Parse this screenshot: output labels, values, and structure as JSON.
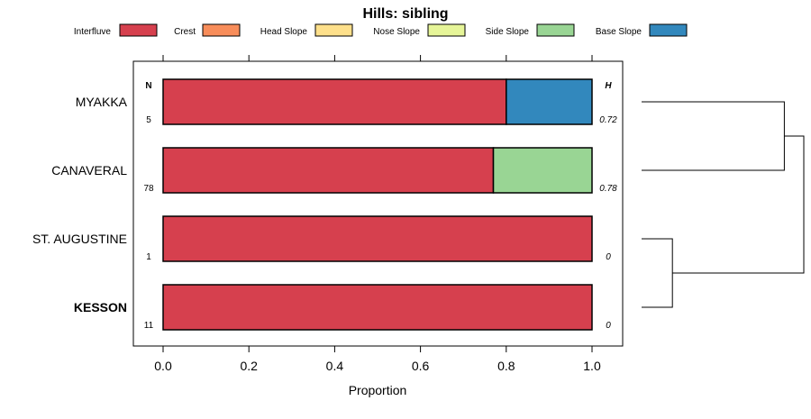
{
  "chart_data": {
    "type": "bar",
    "orientation": "horizontal",
    "stacked": true,
    "title": "Hills: sibling",
    "xlabel": "Proportion",
    "ylabel": "",
    "xlim": [
      0,
      1
    ],
    "x_ticks": [
      "0.0",
      "0.2",
      "0.4",
      "0.6",
      "0.8",
      "1.0"
    ],
    "legend_position": "top",
    "legend": [
      {
        "name": "Interfluve",
        "color": "#d6404e"
      },
      {
        "name": "Crest",
        "color": "#f88d5a"
      },
      {
        "name": "Head Slope",
        "color": "#fee08b"
      },
      {
        "name": "Nose Slope",
        "color": "#e6f598"
      },
      {
        "name": "Side Slope",
        "color": "#99d594"
      },
      {
        "name": "Base Slope",
        "color": "#3288bd"
      }
    ],
    "n_header": "N",
    "h_header": "H",
    "categories": [
      "MYAKKA",
      "CANAVERAL",
      "ST. AUGUSTINE",
      "KESSON"
    ],
    "bold_category": "KESSON",
    "n_values": [
      "5",
      "78",
      "1",
      "11"
    ],
    "h_values": [
      "0.72",
      "0.78",
      "0",
      "0"
    ],
    "series": [
      {
        "name": "Interfluve",
        "values": [
          0.8,
          0.77,
          1.0,
          1.0
        ]
      },
      {
        "name": "Crest",
        "values": [
          0,
          0,
          0,
          0
        ]
      },
      {
        "name": "Head Slope",
        "values": [
          0,
          0,
          0,
          0
        ]
      },
      {
        "name": "Nose Slope",
        "values": [
          0,
          0,
          0,
          0
        ]
      },
      {
        "name": "Side Slope",
        "values": [
          0,
          0.23,
          0,
          0
        ]
      },
      {
        "name": "Base Slope",
        "values": [
          0.2,
          0,
          0,
          0
        ]
      }
    ],
    "dendrogram": {
      "merges": [
        {
          "left": "ST. AUGUSTINE",
          "right": "KESSON",
          "height": 0.19
        },
        {
          "left": "MYAKKA",
          "right": "CANAVERAL",
          "height": 0.88
        },
        {
          "left": "group-1",
          "right": "group-2",
          "height": 1.0
        }
      ]
    }
  }
}
